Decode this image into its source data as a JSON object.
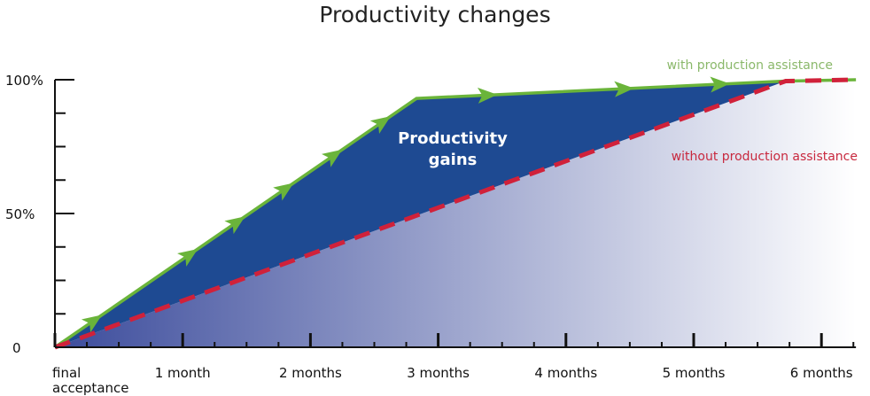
{
  "chart_data": {
    "type": "area",
    "title": "Productivity changes",
    "xlabel": "",
    "ylabel": "",
    "xlim": [
      0,
      6.27
    ],
    "ylim": [
      0,
      100
    ],
    "x_ticks": [
      {
        "value": 0,
        "label": [
          "final",
          "acceptance"
        ]
      },
      {
        "value": 1,
        "label": [
          "1 month"
        ]
      },
      {
        "value": 2,
        "label": [
          "2 months"
        ]
      },
      {
        "value": 3,
        "label": [
          "3 months"
        ]
      },
      {
        "value": 4,
        "label": [
          "4 months"
        ]
      },
      {
        "value": 5,
        "label": [
          "5 months"
        ]
      },
      {
        "value": 6,
        "label": [
          "6 months"
        ]
      }
    ],
    "y_ticks": [
      {
        "value": 0,
        "label": "0"
      },
      {
        "value": 50,
        "label": "50%"
      },
      {
        "value": 100,
        "label": "100%"
      }
    ],
    "x_minor_step": 0.25,
    "y_minor_step": 12.5,
    "grid": false,
    "series": [
      {
        "name": "with production assistance",
        "color": "#6ab43a",
        "style": "solid-with-arrows",
        "x": [
          0,
          2.83,
          5.72,
          6.27
        ],
        "y": [
          0,
          93,
          99.5,
          100
        ]
      },
      {
        "name": "without production assistance",
        "color": "#d0213a",
        "style": "dashed",
        "x": [
          0,
          5.72,
          6.27
        ],
        "y": [
          0,
          99.5,
          100
        ]
      }
    ],
    "annotations": [
      {
        "text": [
          "Productivity",
          "gains"
        ],
        "color": "#ffffff"
      }
    ],
    "colors": {
      "gain_fill": "#1e4a92",
      "base_fill_start": "#3c4c9c",
      "base_fill_end": "#ffffff",
      "axis": "#111111"
    }
  }
}
